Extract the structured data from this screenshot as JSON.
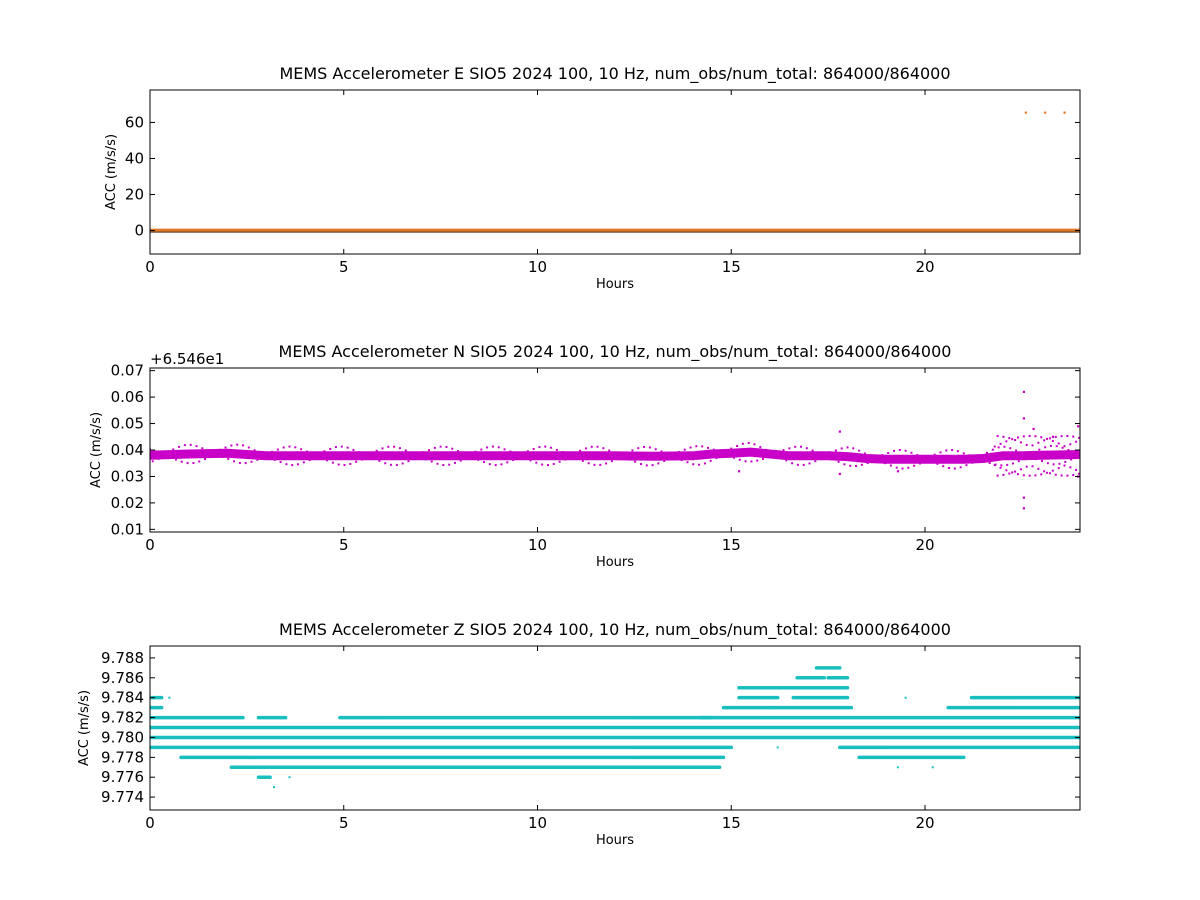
{
  "chart_data": [
    {
      "type": "scatter",
      "title": "MEMS Accelerometer E SIO5 2024 100, 10 Hz, num_obs/num_total: 864000/864000",
      "xlabel": "Hours",
      "ylabel": "ACC (m/s/s)",
      "xlim": [
        0,
        24
      ],
      "ylim": [
        -13,
        78
      ],
      "xticks": [
        0,
        5,
        10,
        15,
        20
      ],
      "yticks": [
        0,
        20,
        40,
        60
      ],
      "color": "#e07a2a",
      "series": [
        {
          "x": [
            0,
            24
          ],
          "y": [
            0,
            0
          ],
          "band": true
        },
        {
          "x": [
            22.6,
            23.1,
            23.6
          ],
          "y": [
            65.5,
            65.5,
            65.5
          ]
        }
      ]
    },
    {
      "type": "scatter",
      "title": "MEMS Accelerometer N SIO5 2024 100, 10 Hz, num_obs/num_total: 864000/864000",
      "xlabel": "Hours",
      "ylabel": "ACC (m/s/s)",
      "offset_text": "+6.546e1",
      "xlim": [
        0,
        24
      ],
      "ylim": [
        0.009,
        0.071
      ],
      "xticks": [
        0,
        5,
        10,
        15,
        20
      ],
      "yticks": [
        0.01,
        0.02,
        0.03,
        0.04,
        0.05,
        0.06,
        0.07
      ],
      "color": "#c800c8",
      "series": [
        {
          "x": [
            0,
            1,
            2,
            3,
            4,
            5,
            6,
            7,
            8,
            9,
            10,
            11,
            12,
            13,
            14,
            14.5,
            15,
            15.5,
            16,
            16.5,
            17,
            17.5,
            18,
            18.5,
            19,
            20,
            21,
            21.5,
            22,
            22.5,
            23,
            24
          ],
          "y": [
            0.038,
            0.0385,
            0.0388,
            0.0378,
            0.0378,
            0.0378,
            0.0378,
            0.0378,
            0.0378,
            0.0378,
            0.0378,
            0.0378,
            0.0378,
            0.0376,
            0.0378,
            0.0385,
            0.0388,
            0.0392,
            0.0385,
            0.0378,
            0.0378,
            0.0378,
            0.0375,
            0.0368,
            0.0365,
            0.0365,
            0.0365,
            0.0368,
            0.0378,
            0.0378,
            0.038,
            0.0383
          ],
          "band": true
        },
        {
          "x": [
            22.55,
            22.55,
            22.55,
            22.55,
            15.2,
            17.8,
            17.8,
            19.3,
            22.8,
            23.3,
            23.95,
            23.95
          ],
          "y": [
            0.062,
            0.052,
            0.018,
            0.022,
            0.032,
            0.047,
            0.031,
            0.032,
            0.048,
            0.045,
            0.049,
            0.03
          ]
        }
      ]
    },
    {
      "type": "scatter",
      "title": "MEMS Accelerometer Z SIO5 2024 100, 10 Hz, num_obs/num_total: 864000/864000",
      "xlabel": "Hours",
      "ylabel": "ACC (m/s/s)",
      "xlim": [
        0,
        24
      ],
      "ylim": [
        9.7727,
        9.7892
      ],
      "xticks": [
        0,
        5,
        10,
        15,
        20
      ],
      "yticks": [
        9.774,
        9.776,
        9.778,
        9.78,
        9.782,
        9.784,
        9.786,
        9.788
      ],
      "ytick_labels": [
        "9.774",
        "9.776",
        "9.778",
        "9.780",
        "9.782",
        "9.784",
        "9.786",
        "9.788"
      ],
      "color": "#19bfbf",
      "levels": [
        {
          "y": 9.784,
          "ranges": [
            [
              0,
              0.3
            ],
            [
              15.2,
              16.2
            ],
            [
              16.6,
              18.0
            ],
            [
              21.2,
              24
            ]
          ]
        },
        {
          "y": 9.783,
          "ranges": [
            [
              0,
              0.3
            ],
            [
              14.8,
              16.0
            ],
            [
              16.0,
              18.1
            ],
            [
              20.6,
              24
            ]
          ]
        },
        {
          "y": 9.782,
          "ranges": [
            [
              0,
              2.4
            ],
            [
              2.8,
              3.5
            ],
            [
              4.9,
              14.5
            ],
            [
              14.2,
              24
            ]
          ]
        },
        {
          "y": 9.781,
          "ranges": [
            [
              0,
              24
            ]
          ]
        },
        {
          "y": 9.78,
          "ranges": [
            [
              0,
              24
            ]
          ]
        },
        {
          "y": 9.779,
          "ranges": [
            [
              0,
              15.0
            ],
            [
              17.8,
              24
            ]
          ]
        },
        {
          "y": 9.778,
          "ranges": [
            [
              0.8,
              14.8
            ],
            [
              18.3,
              21.0
            ]
          ]
        },
        {
          "y": 9.777,
          "ranges": [
            [
              2.1,
              14.7
            ]
          ]
        },
        {
          "y": 9.776,
          "ranges": [
            [
              2.8,
              3.1
            ]
          ]
        },
        {
          "y": 9.785,
          "ranges": [
            [
              15.2,
              18.0
            ]
          ]
        },
        {
          "y": 9.786,
          "ranges": [
            [
              16.7,
              17.4
            ],
            [
              17.5,
              18.0
            ]
          ]
        },
        {
          "y": 9.787,
          "ranges": [
            [
              17.2,
              17.8
            ]
          ]
        }
      ],
      "points": {
        "x": [
          3.2,
          3.6,
          19.5,
          19.3,
          18.4,
          20.2,
          0.1,
          0.5,
          16.2,
          16.3
        ],
        "y": [
          9.775,
          9.776,
          9.784,
          9.777,
          9.778,
          9.777,
          9.784,
          9.784,
          9.779,
          9.78
        ]
      }
    }
  ]
}
